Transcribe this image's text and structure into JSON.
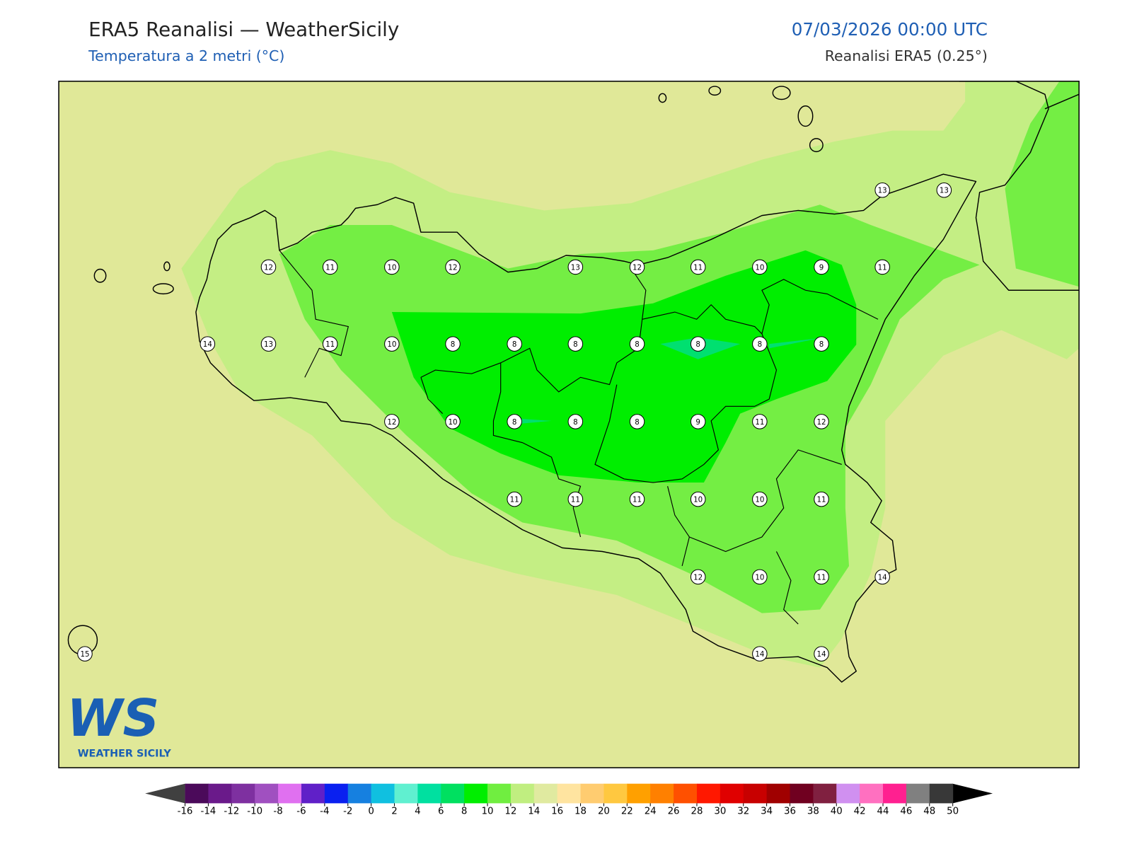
{
  "header": {
    "title": "ERA5 Reanalisi — WeatherSicily",
    "subtitle": "Temperatura a 2 metri (°C)",
    "datetime": "07/03/2026 00:00 UTC",
    "source": "Reanalisi ERA5 (0.25°)"
  },
  "map": {
    "stations": [
      13,
      13,
      12,
      11,
      10,
      12,
      13,
      12,
      11,
      10,
      9,
      11,
      14,
      13,
      11,
      10,
      8,
      8,
      8,
      8,
      8,
      8,
      8,
      12,
      10,
      8,
      8,
      8,
      9,
      11,
      12,
      11,
      11,
      11,
      10,
      10,
      11,
      12,
      10,
      11,
      14,
      15,
      14,
      14
    ]
  },
  "logo": {
    "letters": "WS",
    "text": "WEATHER SICILY"
  },
  "colorbar": {
    "ticks": [
      -16,
      -14,
      -12,
      -10,
      -8,
      -6,
      -4,
      -2,
      0,
      2,
      4,
      6,
      8,
      10,
      12,
      14,
      16,
      18,
      20,
      22,
      24,
      26,
      28,
      30,
      32,
      34,
      36,
      38,
      40,
      42,
      44,
      46,
      48,
      50
    ],
    "colors": [
      "#4b0a5a",
      "#6a1a8a",
      "#7e30a0",
      "#a050c0",
      "#e070f0",
      "#6020c8",
      "#0a20f0",
      "#1680e0",
      "#10c0e0",
      "#60f0d0",
      "#00e0a0",
      "#00e060",
      "#00ee00",
      "#70ee40",
      "#c0ee80",
      "#e0eaa0",
      "#ffe4a0",
      "#ffcc70",
      "#ffc840",
      "#ffa000",
      "#ff8000",
      "#ff5000",
      "#ff1800",
      "#e00000",
      "#c80000",
      "#a00000",
      "#700020",
      "#802040",
      "#d090f0",
      "#ff70c0",
      "#ff2090",
      "#808080",
      "#383838"
    ],
    "under_color": "#404040",
    "over_color": "#000000"
  }
}
